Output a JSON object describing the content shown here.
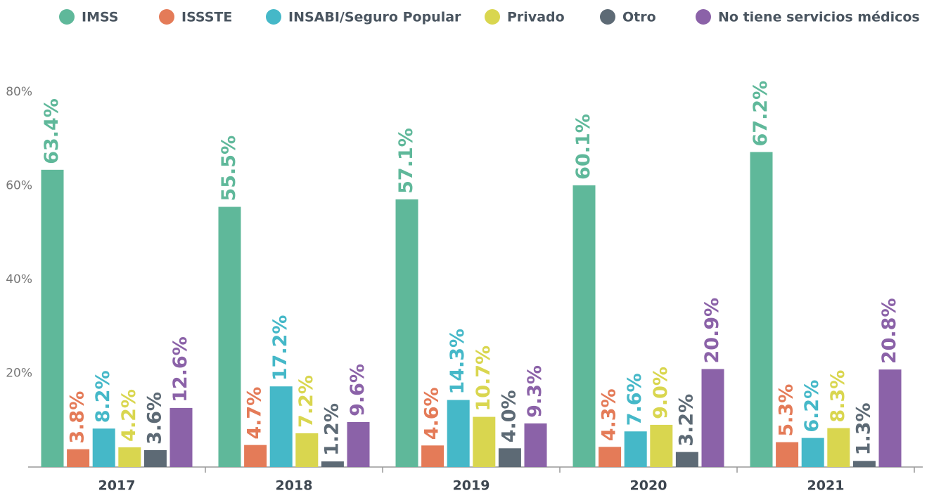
{
  "chart_data": {
    "type": "bar",
    "categories": [
      "2017",
      "2018",
      "2019",
      "2020",
      "2021"
    ],
    "series": [
      {
        "name": "IMSS",
        "color": "#5fb89a",
        "values": [
          63.4,
          55.5,
          57.1,
          60.1,
          67.2
        ],
        "value_labels": [
          "63.4%",
          "55.5%",
          "57.1%",
          "60.1%",
          "67.2%"
        ]
      },
      {
        "name": "ISSSTE",
        "color": "#e47b58",
        "values": [
          3.8,
          4.7,
          4.6,
          4.3,
          5.3
        ],
        "value_labels": [
          "3.8%",
          "4.7%",
          "4.6%",
          "4.3%",
          "5.3%"
        ]
      },
      {
        "name": "INSABI/Seguro Popular",
        "color": "#45b8c8",
        "values": [
          8.2,
          17.2,
          14.3,
          7.6,
          6.2
        ],
        "value_labels": [
          "8.2%",
          "17.2%",
          "14.3%",
          "7.6%",
          "6.2%"
        ]
      },
      {
        "name": "Privado",
        "color": "#d9d64f",
        "values": [
          4.2,
          7.2,
          10.7,
          9.0,
          8.3
        ],
        "value_labels": [
          "4.2%",
          "7.2%",
          "10.7%",
          "9.0%",
          "8.3%"
        ]
      },
      {
        "name": "Otro",
        "color": "#5d6a75",
        "values": [
          3.6,
          1.2,
          4.0,
          3.2,
          1.3
        ],
        "value_labels": [
          "3.6%",
          "1.2%",
          "4.0%",
          "3.2%",
          "1.3%"
        ]
      },
      {
        "name": "No tiene servicios médicos",
        "color": "#8b62a8",
        "values": [
          12.6,
          9.6,
          9.3,
          20.9,
          20.8
        ],
        "value_labels": [
          "12.6%",
          "9.6%",
          "9.3%",
          "20.9%",
          "20.8%"
        ]
      }
    ],
    "ylim": [
      0,
      80
    ],
    "yticks": [
      {
        "value": 20,
        "label": "20%"
      },
      {
        "value": 40,
        "label": "40%"
      },
      {
        "value": 60,
        "label": "60%"
      },
      {
        "value": 80,
        "label": "80%"
      }
    ],
    "legend": "top"
  }
}
